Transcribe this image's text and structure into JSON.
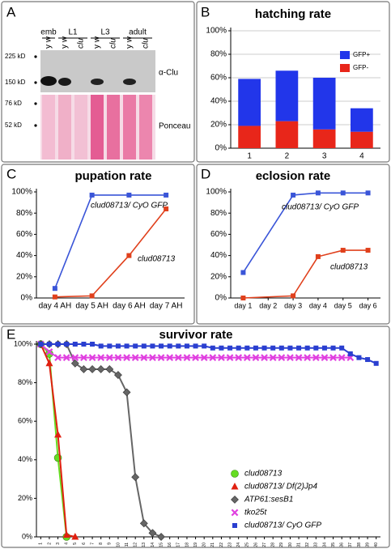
{
  "blot": {
    "panel": "A",
    "groups": [
      "emb",
      "L1",
      "L3",
      "adult"
    ],
    "lanes": [
      "y w",
      "y w",
      "clu",
      "y w",
      "clu",
      "y w",
      "clu"
    ],
    "markers": [
      "225 kD",
      "150 kD",
      "76 kD",
      "52 kD"
    ],
    "labels": [
      "α-Clu",
      "Ponceau"
    ]
  },
  "chart_data": [
    {
      "panel": "B",
      "type": "bar",
      "stacked": true,
      "title": "hatching rate",
      "grid": true,
      "categories": [
        "1",
        "2",
        "3",
        "4"
      ],
      "series": [
        {
          "name": "GFP-",
          "color": "#e8261a",
          "values": [
            19,
            23,
            16,
            14
          ]
        },
        {
          "name": "GFP+",
          "color": "#2236ea",
          "values": [
            40,
            43,
            44,
            20
          ]
        }
      ],
      "ylim": [
        0,
        100
      ],
      "yticks": [
        {
          "value": 0,
          "label": "0%"
        },
        {
          "value": 20,
          "label": "20%"
        },
        {
          "value": 40,
          "label": "40%"
        },
        {
          "value": 60,
          "label": "60%"
        },
        {
          "value": 80,
          "label": "80%"
        },
        {
          "value": 100,
          "label": "100%"
        }
      ]
    },
    {
      "panel": "C",
      "type": "line",
      "title": "pupation rate",
      "grid": false,
      "categories": [
        "day 4 AH",
        "day 5 AH",
        "day 6 AH",
        "day 7 AH"
      ],
      "series": [
        {
          "name": "clud08713/ CyO GFP",
          "color": "#3a55d8",
          "marker": "square",
          "values": [
            9,
            97,
            97,
            97
          ]
        },
        {
          "name": "clud08713",
          "color": "#e0401c",
          "marker": "square",
          "values": [
            1,
            2,
            40,
            84
          ]
        }
      ],
      "ylim": [
        0,
        100
      ],
      "yticks": [
        {
          "value": 0,
          "label": "0%"
        },
        {
          "value": 20,
          "label": "20%"
        },
        {
          "value": 40,
          "label": "40%"
        },
        {
          "value": 60,
          "label": "60%"
        },
        {
          "value": 80,
          "label": "80%"
        },
        {
          "value": 100,
          "label": "100%"
        }
      ]
    },
    {
      "panel": "D",
      "type": "line",
      "title": "eclosion rate",
      "grid": false,
      "xlim": [
        0.5,
        6.5
      ],
      "xticks": [
        {
          "value": 1,
          "label": "day 1"
        },
        {
          "value": 2,
          "label": "day 2"
        },
        {
          "value": 3,
          "label": "day 3"
        },
        {
          "value": 4,
          "label": "day 4"
        },
        {
          "value": 5,
          "label": "day 5"
        },
        {
          "value": 6,
          "label": "day 6"
        }
      ],
      "series": [
        {
          "name": "clud08713/ CyO GFP",
          "color": "#3a55d8",
          "marker": "square",
          "x": [
            1,
            3,
            4,
            5,
            6
          ],
          "values": [
            24,
            97,
            99,
            99,
            99
          ]
        },
        {
          "name": "clud08713",
          "color": "#e0401c",
          "marker": "square",
          "x": [
            1,
            3,
            4,
            5,
            6
          ],
          "values": [
            0,
            2,
            39,
            45,
            45
          ]
        }
      ],
      "ylim": [
        0,
        100
      ],
      "yticks": [
        {
          "value": 0,
          "label": "0%"
        },
        {
          "value": 20,
          "label": "20%"
        },
        {
          "value": 40,
          "label": "40%"
        },
        {
          "value": 60,
          "label": "60%"
        },
        {
          "value": 80,
          "label": "80%"
        },
        {
          "value": 100,
          "label": "100%"
        }
      ]
    },
    {
      "panel": "E",
      "type": "line",
      "title": "survivor rate",
      "grid": false,
      "xlim": [
        0.5,
        40.5
      ],
      "xticks": [
        1,
        2,
        3,
        4,
        5,
        6,
        7,
        8,
        9,
        10,
        11,
        12,
        13,
        14,
        15,
        16,
        17,
        18,
        19,
        20,
        21,
        22,
        23,
        24,
        25,
        26,
        27,
        28,
        29,
        30,
        31,
        32,
        33,
        34,
        35,
        36,
        37,
        38,
        39,
        40
      ],
      "series": [
        {
          "name": "clud08713",
          "color": "#66dd22",
          "marker": "circle",
          "x": [
            1,
            2,
            3,
            4
          ],
          "values": [
            100,
            95,
            41,
            0
          ]
        },
        {
          "name": "clud08713/ Df(2)Jp4",
          "color": "#e02010",
          "marker": "triangle",
          "x": [
            1,
            2,
            3,
            4,
            5
          ],
          "values": [
            100,
            90,
            53,
            1,
            0
          ]
        },
        {
          "name": "ATP61:sesB1",
          "color": "#666666",
          "marker": "diamond",
          "x": [
            1,
            2,
            3,
            4,
            5,
            6,
            7,
            8,
            9,
            10,
            11,
            12,
            13,
            14,
            15
          ],
          "values": [
            100,
            100,
            100,
            100,
            90,
            87,
            87,
            87,
            87,
            84,
            75,
            31,
            7,
            2,
            0
          ]
        },
        {
          "name": "tko25t",
          "color": "#e040e0",
          "marker": "x",
          "x": [
            1,
            2,
            3,
            4,
            5,
            6,
            7,
            8,
            9,
            10,
            11,
            12,
            13,
            14,
            15,
            16,
            17,
            18,
            19,
            20,
            21,
            22,
            23,
            24,
            25,
            26,
            27,
            28,
            29,
            30,
            31,
            32,
            33,
            34,
            35,
            36,
            37
          ],
          "values": [
            100,
            96,
            93,
            93,
            93,
            93,
            93,
            93,
            93,
            93,
            93,
            93,
            93,
            93,
            93,
            93,
            93,
            93,
            93,
            93,
            93,
            93,
            93,
            93,
            93,
            93,
            93,
            93,
            93,
            93,
            93,
            93,
            93,
            93,
            93,
            93,
            93
          ]
        },
        {
          "name": "clud08713/ CyO GFP",
          "color": "#2a3fd0",
          "marker": "square",
          "x": [
            1,
            2,
            3,
            4,
            5,
            6,
            7,
            8,
            9,
            10,
            11,
            12,
            13,
            14,
            15,
            16,
            17,
            18,
            19,
            20,
            21,
            22,
            23,
            24,
            25,
            26,
            27,
            28,
            29,
            30,
            31,
            32,
            33,
            34,
            35,
            36,
            37,
            38,
            39,
            40
          ],
          "values": [
            100,
            100,
            100,
            100,
            100,
            100,
            100,
            99,
            99,
            99,
            99,
            99,
            99,
            99,
            99,
            99,
            99,
            99,
            99,
            99,
            98,
            98,
            98,
            98,
            98,
            98,
            98,
            98,
            98,
            98,
            98,
            98,
            98,
            98,
            98,
            98,
            95,
            93,
            92,
            90
          ]
        }
      ],
      "ylim": [
        0,
        100
      ],
      "yticks": [
        {
          "value": 0,
          "label": "0%"
        },
        {
          "value": 20,
          "label": "20%"
        },
        {
          "value": 40,
          "label": "40%"
        },
        {
          "value": 60,
          "label": "60%"
        },
        {
          "value": 80,
          "label": "80%"
        },
        {
          "value": 100,
          "label": "100%"
        }
      ]
    }
  ]
}
